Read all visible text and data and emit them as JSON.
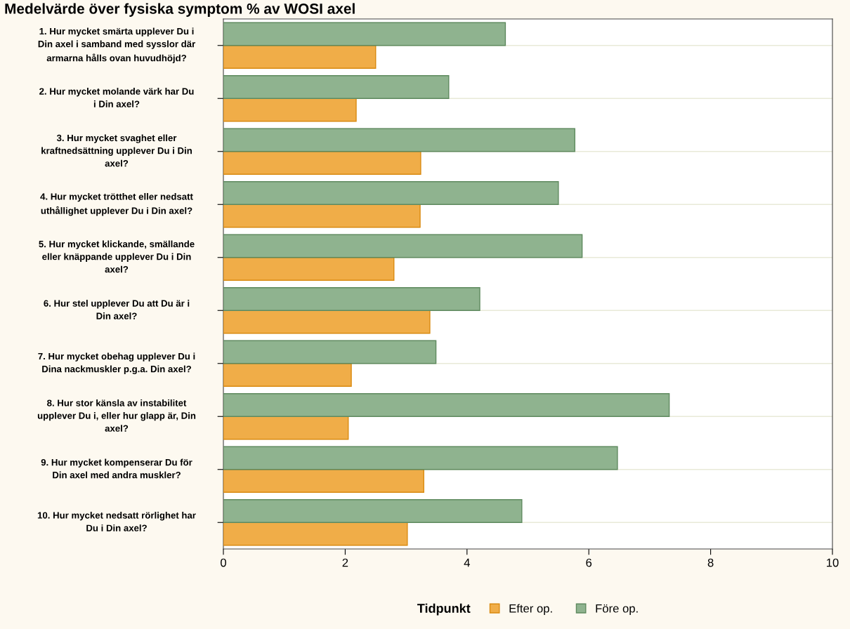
{
  "chart_data": {
    "type": "bar",
    "orientation": "horizontal",
    "title": "Medelvärde över fysiska symptom % av WOSI axel",
    "categories": [
      "1. Hur mycket smärta upplever Du i\nDin axel i samband med sysslor där\narmarna hålls ovan huvudhöjd?",
      "2. Hur mycket molande värk har Du\ni Din axel?",
      "3. Hur mycket svaghet eller\nkraftnedsättning upplever Du i Din\naxel?",
      "4. Hur mycket trötthet eller nedsatt\nuthållighet upplever Du i Din axel?",
      "5. Hur mycket klickande, smällande\neller knäppande upplever Du i Din\naxel?",
      "6. Hur stel upplever Du att Du är i\nDin axel?",
      "7. Hur mycket obehag upplever Du i\nDina nackmuskler p.g.a. Din axel?",
      "8. Hur stor känsla av instabilitet\nupplever Du i, eller hur glapp är, Din\naxel?",
      "9. Hur mycket kompenserar Du för\nDin axel med andra muskler?",
      "10. Hur mycket nedsatt rörlighet har\nDu i Din axel?"
    ],
    "series": [
      {
        "name": "Efter op.",
        "color": "#f0ad48",
        "values": [
          2.5,
          2.18,
          3.24,
          3.23,
          2.8,
          3.39,
          2.1,
          2.05,
          3.29,
          3.02
        ]
      },
      {
        "name": "Före op.",
        "color": "#8fb38f",
        "values": [
          4.63,
          3.7,
          5.77,
          5.5,
          5.89,
          4.21,
          3.49,
          7.32,
          6.47,
          4.9
        ]
      }
    ],
    "xlim": [
      0,
      10
    ],
    "xticks": [
      0,
      2,
      4,
      6,
      8,
      10
    ],
    "grid": "y",
    "legend": "bottom",
    "legend_title": "Tidpunkt"
  }
}
